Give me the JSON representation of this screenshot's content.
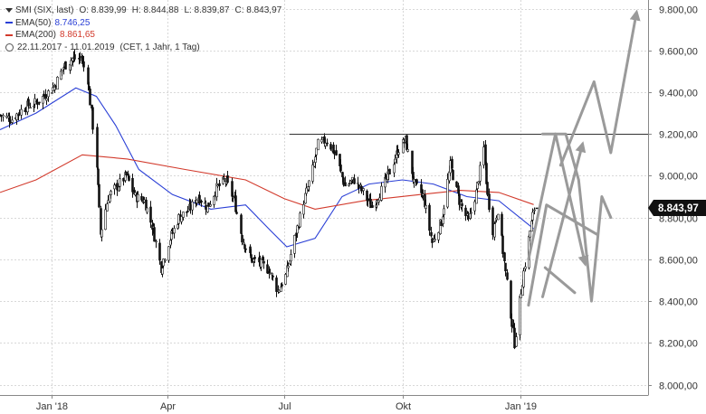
{
  "legend": {
    "instrument": "SMI (SIX, last)",
    "ohlc": {
      "O": "O: 8.839,99",
      "H": "H: 8.844,88",
      "L": "L: 8.839,87",
      "C": "C: 8.843,97"
    },
    "ema50": {
      "label": "EMA(50)",
      "value": "8.746,25",
      "color": "#2a3fd6"
    },
    "ema200": {
      "label": "EMA(200)",
      "value": "8.861,65",
      "color": "#d23a2c"
    },
    "range": "22.11.2017 - 11.01.2019",
    "settings": "(CET, 1 Jahr, 1 Tag)"
  },
  "chart_data": {
    "type": "candlestick",
    "y_axis": {
      "range": [
        8000,
        9800
      ],
      "ticks": [
        {
          "value": 9800,
          "label": "9.800,00"
        },
        {
          "value": 9600,
          "label": "9.600,00"
        },
        {
          "value": 9400,
          "label": "9.400,00"
        },
        {
          "value": 9200,
          "label": "9.200,00"
        },
        {
          "value": 9000,
          "label": "9.000,00"
        },
        {
          "value": 8800,
          "label": "8.800,00"
        },
        {
          "value": 8600,
          "label": "8.600,00"
        },
        {
          "value": 8400,
          "label": "8.400,00"
        },
        {
          "value": 8200,
          "label": "8.200,00"
        },
        {
          "value": 8000,
          "label": "8.000,00"
        }
      ],
      "position": "right"
    },
    "x_axis": {
      "range": [
        "2017-11-22",
        "2019-04-10"
      ],
      "ticks": [
        {
          "date": "2018-01-01",
          "label": "Jan '18"
        },
        {
          "date": "2018-04-01",
          "label": "Apr"
        },
        {
          "date": "2018-07-01",
          "label": "Jul"
        },
        {
          "date": "2018-10-01",
          "label": "Okt"
        },
        {
          "date": "2019-01-01",
          "label": "Jan '19"
        }
      ]
    },
    "last_price": {
      "value": 8843.97,
      "label": "8.843,97"
    },
    "resistance_line": {
      "value": 9200,
      "from": "2018-07-05",
      "to": "2019-04-10"
    },
    "price_points": [
      [
        "2017-11-22",
        9290
      ],
      [
        "2017-12-01",
        9270
      ],
      [
        "2017-12-11",
        9330
      ],
      [
        "2017-12-20",
        9350
      ],
      [
        "2018-01-02",
        9420
      ],
      [
        "2018-01-10",
        9520
      ],
      [
        "2018-01-17",
        9560
      ],
      [
        "2018-01-24",
        9560
      ],
      [
        "2018-01-29",
        9460
      ],
      [
        "2018-02-01",
        9300
      ],
      [
        "2018-02-05",
        9050
      ],
      [
        "2018-02-08",
        8720
      ],
      [
        "2018-02-14",
        8900
      ],
      [
        "2018-02-21",
        8950
      ],
      [
        "2018-02-28",
        9000
      ],
      [
        "2018-03-07",
        8900
      ],
      [
        "2018-03-14",
        8880
      ],
      [
        "2018-03-21",
        8740
      ],
      [
        "2018-03-27",
        8560
      ],
      [
        "2018-04-03",
        8700
      ],
      [
        "2018-04-10",
        8800
      ],
      [
        "2018-04-18",
        8840
      ],
      [
        "2018-04-25",
        8900
      ],
      [
        "2018-05-02",
        8850
      ],
      [
        "2018-05-09",
        8940
      ],
      [
        "2018-05-16",
        8980
      ],
      [
        "2018-05-23",
        8880
      ],
      [
        "2018-05-29",
        8700
      ],
      [
        "2018-06-05",
        8600
      ],
      [
        "2018-06-12",
        8580
      ],
      [
        "2018-06-19",
        8550
      ],
      [
        "2018-06-26",
        8450
      ],
      [
        "2018-07-02",
        8520
      ],
      [
        "2018-07-09",
        8700
      ],
      [
        "2018-07-16",
        8880
      ],
      [
        "2018-07-23",
        9030
      ],
      [
        "2018-07-27",
        9150
      ],
      [
        "2018-08-03",
        9170
      ],
      [
        "2018-08-10",
        9100
      ],
      [
        "2018-08-17",
        8950
      ],
      [
        "2018-08-24",
        8980
      ],
      [
        "2018-08-31",
        8920
      ],
      [
        "2018-09-07",
        8850
      ],
      [
        "2018-09-14",
        8930
      ],
      [
        "2018-09-21",
        9020
      ],
      [
        "2018-09-27",
        9120
      ],
      [
        "2018-10-03",
        9170
      ],
      [
        "2018-10-10",
        8960
      ],
      [
        "2018-10-17",
        8900
      ],
      [
        "2018-10-24",
        8680
      ],
      [
        "2018-10-31",
        8780
      ],
      [
        "2018-11-07",
        9050
      ],
      [
        "2018-11-14",
        8880
      ],
      [
        "2018-11-21",
        8780
      ],
      [
        "2018-11-27",
        8920
      ],
      [
        "2018-12-03",
        9130
      ],
      [
        "2018-12-06",
        8900
      ],
      [
        "2018-12-10",
        8740
      ],
      [
        "2018-12-14",
        8840
      ],
      [
        "2018-12-18",
        8640
      ],
      [
        "2018-12-21",
        8480
      ],
      [
        "2018-12-27",
        8200
      ],
      [
        "2019-01-02",
        8500
      ],
      [
        "2019-01-07",
        8700
      ],
      [
        "2019-01-11",
        8844
      ]
    ],
    "series": [
      {
        "name": "EMA(50)",
        "color": "#2a3fd6",
        "points": [
          [
            "2017-11-22",
            9220
          ],
          [
            "2017-12-20",
            9300
          ],
          [
            "2018-01-20",
            9420
          ],
          [
            "2018-02-05",
            9380
          ],
          [
            "2018-02-20",
            9240
          ],
          [
            "2018-03-10",
            9030
          ],
          [
            "2018-04-05",
            8910
          ],
          [
            "2018-05-05",
            8840
          ],
          [
            "2018-06-01",
            8860
          ],
          [
            "2018-06-20",
            8740
          ],
          [
            "2018-07-03",
            8660
          ],
          [
            "2018-07-25",
            8700
          ],
          [
            "2018-08-15",
            8900
          ],
          [
            "2018-09-05",
            8960
          ],
          [
            "2018-10-01",
            8980
          ],
          [
            "2018-10-25",
            8960
          ],
          [
            "2018-11-20",
            8900
          ],
          [
            "2018-12-15",
            8880
          ],
          [
            "2019-01-11",
            8746
          ]
        ]
      },
      {
        "name": "EMA(200)",
        "color": "#d23a2c",
        "points": [
          [
            "2017-11-22",
            8920
          ],
          [
            "2017-12-20",
            8980
          ],
          [
            "2018-01-25",
            9100
          ],
          [
            "2018-03-01",
            9080
          ],
          [
            "2018-04-15",
            9030
          ],
          [
            "2018-06-01",
            8980
          ],
          [
            "2018-07-01",
            8890
          ],
          [
            "2018-07-25",
            8840
          ],
          [
            "2018-09-01",
            8880
          ],
          [
            "2018-10-15",
            8910
          ],
          [
            "2018-11-15",
            8930
          ],
          [
            "2018-12-15",
            8920
          ],
          [
            "2019-01-11",
            8862
          ]
        ]
      }
    ],
    "scenario_arrows": [
      {
        "points": [
          [
            "2019-01-07",
            8600
          ],
          [
            "2019-01-28",
            9200
          ],
          [
            "2019-02-20",
            8580
          ]
        ],
        "head": "end"
      },
      {
        "points": [
          [
            "2019-01-07",
            8380
          ],
          [
            "2019-01-21",
            8860
          ],
          [
            "2019-03-01",
            8720
          ]
        ],
        "head": "none"
      },
      {
        "points": [
          [
            "2019-02-01",
            9050
          ],
          [
            "2019-02-27",
            9450
          ],
          [
            "2019-03-12",
            9110
          ],
          [
            "2019-04-01",
            9780
          ]
        ],
        "head": "end"
      },
      {
        "points": [
          [
            "2019-01-18",
            9200
          ],
          [
            "2019-02-05",
            9200
          ],
          [
            "2019-02-15",
            8980
          ],
          [
            "2019-02-25",
            8400
          ],
          [
            "2019-03-05",
            8900
          ],
          [
            "2019-03-12",
            8800
          ]
        ],
        "head": "none"
      },
      {
        "points": [
          [
            "2019-01-18",
            8420
          ],
          [
            "2019-02-18",
            9150
          ]
        ],
        "head": "end"
      },
      {
        "points": [
          [
            "2019-01-20",
            8560
          ],
          [
            "2019-02-12",
            8440
          ]
        ],
        "head": "none"
      }
    ],
    "grid": true,
    "legend_position": "top-left"
  }
}
